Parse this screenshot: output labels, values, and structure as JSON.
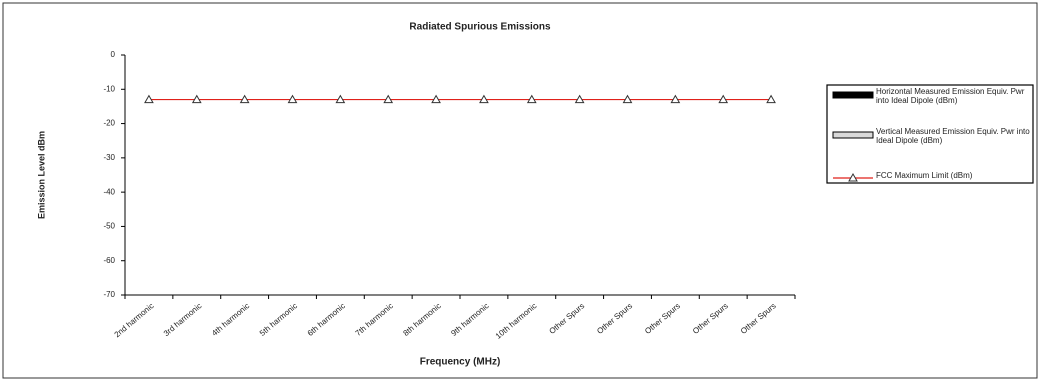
{
  "chart_data": {
    "type": "line",
    "title": "Radiated Spurious Emissions",
    "x_label": "Frequency (MHz)",
    "y_label": "Emission Level dBm",
    "categories": [
      "2nd harmonic",
      "3rd harmonic",
      "4th harmonic",
      "5th harmonic",
      "6th harmonic",
      "7th harmonic",
      "8th harmonic",
      "9th harmonic",
      "10th harmonic",
      "Other Spurs",
      "Other Spurs",
      "Other Spurs",
      "Other Spurs",
      "Other Spurs"
    ],
    "series": [
      {
        "name": "Horizontal Measured Emission Equiv. Pwr into Ideal Dipole (dBm)",
        "type": "bar",
        "color": "#000000",
        "values": [
          null,
          null,
          null,
          null,
          null,
          null,
          null,
          null,
          null,
          null,
          null,
          null,
          null,
          null
        ]
      },
      {
        "name": "Vertical Measured Emission Equiv. Pwr into Ideal Dipole (dBm)",
        "type": "bar",
        "color": "#d9d9d9",
        "values": [
          null,
          null,
          null,
          null,
          null,
          null,
          null,
          null,
          null,
          null,
          null,
          null,
          null,
          null
        ]
      },
      {
        "name": "FCC Maximum Limit (dBm)",
        "type": "line",
        "color": "#e0211a",
        "values": [
          -13,
          -13,
          -13,
          -13,
          -13,
          -13,
          -13,
          -13,
          -13,
          -13,
          -13,
          -13,
          -13,
          -13
        ]
      }
    ],
    "ylim": [
      -70,
      0
    ],
    "yticks": [
      0,
      -10,
      -20,
      -30,
      -40,
      -50,
      -60,
      -70
    ],
    "legend": "right"
  }
}
